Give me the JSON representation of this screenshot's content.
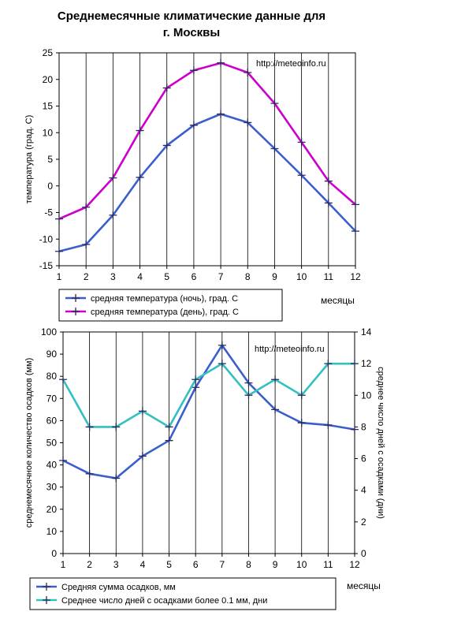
{
  "title": {
    "line1": "Среднемесячные климатические данные для",
    "line2": "г. Москвы"
  },
  "chart_data": [
    {
      "type": "line",
      "watermark": "http://meteoinfo.ru",
      "x": [
        1,
        2,
        3,
        4,
        5,
        6,
        7,
        8,
        9,
        10,
        11,
        12
      ],
      "xlabel": "месяцы",
      "ylabel": "температура (град. С)",
      "ylim": [
        -15,
        25
      ],
      "yticks": [
        -15,
        -10,
        -5,
        0,
        5,
        10,
        15,
        20,
        25
      ],
      "grid": "vertical",
      "legend_position": "bottom",
      "series": [
        {
          "name": "средняя температура (ночь), град. С",
          "color": "#3a5fcd",
          "values": [
            -12.3,
            -11.0,
            -5.5,
            1.6,
            7.6,
            11.4,
            13.5,
            11.9,
            7.0,
            2.0,
            -3.2,
            -8.5
          ]
        },
        {
          "name": "средняя температура (день), град. С",
          "color": "#cc00cc",
          "values": [
            -6.2,
            -4.0,
            1.5,
            10.4,
            18.4,
            21.7,
            23.1,
            21.3,
            15.5,
            8.2,
            0.9,
            -3.5
          ]
        }
      ]
    },
    {
      "type": "line",
      "watermark": "http://meteoinfo.ru",
      "x": [
        1,
        2,
        3,
        4,
        5,
        6,
        7,
        8,
        9,
        10,
        11,
        12
      ],
      "xlabel": "месяцы",
      "ylabel": "среднемесячное количество осадков (мм)",
      "ylabel_right": "среднее число дней с осадками (дни)",
      "ylim": [
        0,
        100
      ],
      "yticks": [
        0,
        10,
        20,
        30,
        40,
        50,
        60,
        70,
        80,
        90,
        100
      ],
      "ylim_right": [
        0,
        14
      ],
      "yticks_right": [
        0,
        2,
        4,
        6,
        8,
        10,
        12,
        14
      ],
      "grid": "vertical",
      "legend_position": "bottom",
      "series": [
        {
          "name": "Средняя сумма осадков, мм",
          "color": "#3a5fcd",
          "axis": "left",
          "values": [
            42,
            36,
            34,
            44,
            51,
            75,
            94,
            77,
            65,
            59,
            58,
            56
          ]
        },
        {
          "name": "Среднее число дней с  осадками более 0.1 мм, дни",
          "color": "#33c0c0",
          "axis": "right",
          "values": [
            11,
            8,
            8,
            9,
            8,
            11,
            12,
            10,
            11,
            10,
            12,
            12
          ]
        }
      ]
    }
  ]
}
